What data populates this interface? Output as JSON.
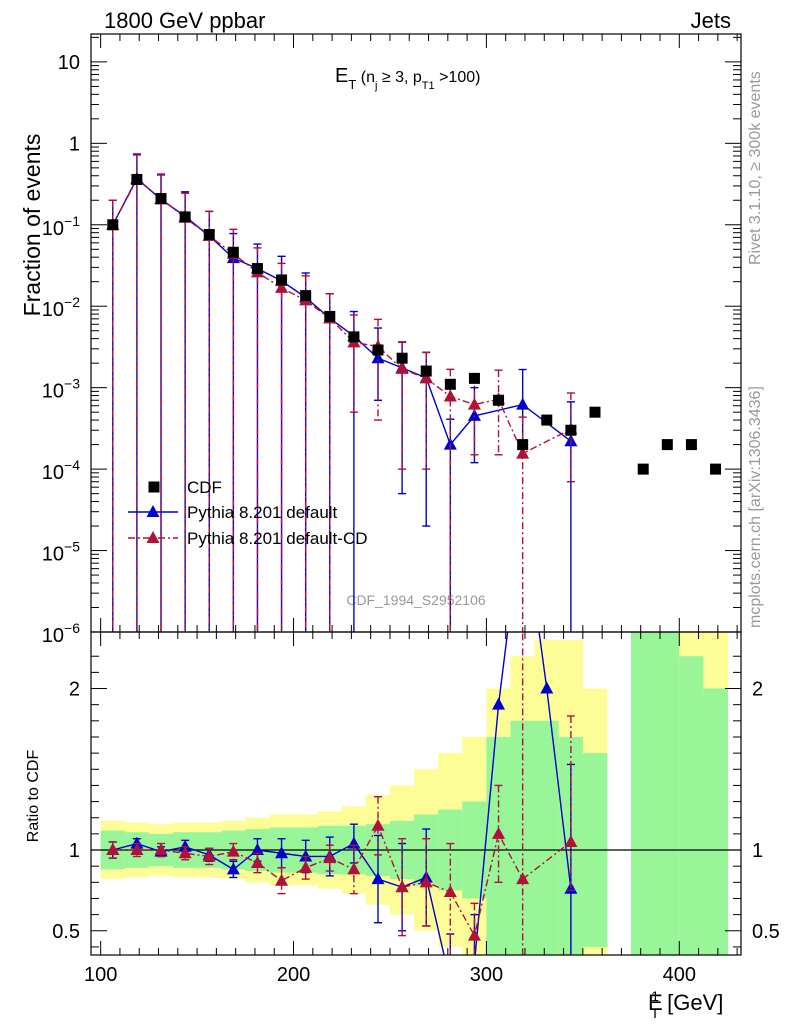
{
  "header": {
    "process": "1800 GeV ppbar",
    "category": "Jets"
  },
  "side_labels": {
    "version": "Rivet 3.1.10, ≥ 300k events",
    "source": "mcplots.cern.ch [arXiv:1306.3436]"
  },
  "plot_title": {
    "main": "E",
    "main_sub": "T",
    "paren_open": " (n",
    "nj_sub": "j",
    "mid": " ≥ 3, p",
    "pt_sub": "T1",
    "close": " >100)"
  },
  "analysis_id": "CDF_1994_S2952106",
  "xlabel": {
    "main": "E",
    "sup": "1",
    "sub": "T",
    "unit": " [GeV]"
  },
  "colors": {
    "data": "#000000",
    "default": "#0000cc",
    "default_cd": "#b0103a",
    "band_inner": "#98f598",
    "band_outer": "#fdfd98"
  },
  "chart_data": [
    {
      "type": "scatter",
      "panel": "main",
      "xlim": [
        95,
        432
      ],
      "ylim": [
        1e-06,
        22
      ],
      "yscale": "log",
      "ylabel": "Fraction of events",
      "x_ticks": [
        100,
        200,
        300,
        400
      ],
      "y_ticks": [
        {
          "v": 1e-06,
          "base": "10",
          "exp": "−6"
        },
        {
          "v": 1e-05,
          "base": "10",
          "exp": "−5"
        },
        {
          "v": 0.0001,
          "base": "10",
          "exp": "−4"
        },
        {
          "v": 0.001,
          "base": "10",
          "exp": "−3"
        },
        {
          "v": 0.01,
          "base": "10",
          "exp": "−2"
        },
        {
          "v": 0.1,
          "base": "10",
          "exp": "−1"
        },
        {
          "v": 1,
          "base": "1",
          "exp": ""
        },
        {
          "v": 10,
          "base": "10",
          "exp": ""
        }
      ],
      "legend_position": "lower-left",
      "series": [
        {
          "name": "CDF",
          "style": "square",
          "x": [
            106.3,
            118.8,
            131.3,
            143.8,
            156.3,
            168.8,
            181.3,
            193.8,
            206.3,
            218.8,
            231.3,
            243.8,
            256.3,
            268.8,
            281.3,
            293.8,
            306.3,
            318.8,
            331.3,
            343.8,
            356.3,
            381.3,
            393.8,
            406.3,
            418.8
          ],
          "y": [
            0.1,
            0.36,
            0.21,
            0.125,
            0.076,
            0.046,
            0.029,
            0.021,
            0.0135,
            0.0075,
            0.0042,
            0.0029,
            0.0023,
            0.0016,
            0.0011,
            0.0013,
            0.0007,
            0.0002,
            0.0004,
            0.0003,
            0.0005,
            0.0001,
            0.0002,
            0.0002,
            0.0001
          ]
        },
        {
          "name": "Pythia 8.201 default",
          "style": "blue-line",
          "x": [
            106.3,
            118.8,
            131.3,
            143.8,
            156.3,
            168.8,
            181.3,
            193.8,
            206.3,
            218.8,
            231.3,
            243.8,
            256.3,
            268.8,
            281.3,
            293.8,
            306.3,
            318.8,
            331.3,
            343.8
          ],
          "y": [
            0.1,
            0.37,
            0.205,
            0.127,
            0.073,
            0.039,
            0.029,
            0.0205,
            0.0128,
            0.0071,
            0.0043,
            0.0023,
            0.00175,
            0.00132,
            0.0002,
            0.00045,
            null,
            0.00062,
            null,
            0.00022
          ],
          "err_lo": [
            0.1,
            0.37,
            0.205,
            0.127,
            0.073,
            0.039,
            0.029,
            0.0205,
            0.0128,
            0.0071,
            0.0043,
            0.0016,
            0.0017,
            0.0013,
            1.0,
            0.00033,
            null,
            0.00044,
            null,
            1.0
          ],
          "err_hi": [
            0.1,
            0.37,
            0.205,
            0.127,
            0.073,
            0.039,
            0.029,
            0.0205,
            0.0128,
            0.0071,
            0.0043,
            0.0031,
            0.0019,
            0.0014,
            0.00021,
            0.00055,
            null,
            0.00105,
            null,
            0.00045
          ]
        },
        {
          "name": "Pythia 8.201 default-CD",
          "style": "red-dashdot",
          "x": [
            106.3,
            118.8,
            131.3,
            143.8,
            156.3,
            168.8,
            181.3,
            193.8,
            206.3,
            218.8,
            231.3,
            243.8,
            256.3,
            268.8,
            281.3,
            293.8,
            306.3,
            318.8,
            343.8
          ],
          "y": [
            0.1,
            0.36,
            0.21,
            0.122,
            0.073,
            0.044,
            0.026,
            0.0168,
            0.0118,
            0.0071,
            0.0036,
            0.0032,
            0.0017,
            0.0013,
            0.00078,
            0.00062,
            0.00072,
            0.000155,
            0.00031
          ],
          "err_lo": [
            0.1,
            0.36,
            0.21,
            0.122,
            0.073,
            0.044,
            0.026,
            0.0168,
            0.0118,
            0.0071,
            0.0031,
            0.0028,
            0.0016,
            0.0012,
            1.0,
            0.00047,
            0.00057,
            1.0,
            0.00024
          ],
          "err_hi": [
            0.1,
            0.36,
            0.21,
            0.122,
            0.073,
            0.044,
            0.026,
            0.0168,
            0.0118,
            0.0071,
            0.0042,
            0.0037,
            0.0019,
            0.0014,
            0.0009,
            0.00079,
            0.00092,
            0.00028,
            0.00055
          ]
        }
      ]
    },
    {
      "type": "line",
      "panel": "ratio",
      "ylabel": "Ratio to CDF",
      "xlim": [
        95,
        432
      ],
      "ylim": [
        0.35,
        2.35
      ],
      "y_ticks": [
        0.5,
        1,
        2
      ],
      "y_tick_labels": [
        "0.5",
        "1",
        "2"
      ],
      "x_ticks": [
        100,
        200,
        300,
        400
      ],
      "x_tick_labels": [
        "100",
        "200",
        "300",
        "400"
      ],
      "bands": {
        "edges": [
          100,
          112.5,
          125,
          137.5,
          150,
          162.5,
          175,
          187.5,
          200,
          212.5,
          225,
          237.5,
          250,
          262.5,
          275,
          287.5,
          300,
          312.5,
          325,
          337.5,
          350,
          362.5,
          375,
          387.5,
          400,
          412.5,
          425
        ],
        "inner_lo": [
          0.88,
          0.89,
          0.9,
          0.89,
          0.89,
          0.88,
          0.87,
          0.86,
          0.86,
          0.85,
          0.85,
          0.84,
          0.82,
          0.78,
          0.75,
          0.7,
          0.3,
          0.2,
          0.2,
          0.3,
          0.4,
          null,
          0.2,
          0.2,
          0.2,
          0.2
        ],
        "inner_hi": [
          1.12,
          1.11,
          1.1,
          1.11,
          1.11,
          1.12,
          1.13,
          1.14,
          1.14,
          1.15,
          1.15,
          1.16,
          1.18,
          1.22,
          1.25,
          1.3,
          1.7,
          1.8,
          1.8,
          1.7,
          1.6,
          null,
          3.0,
          2.5,
          2.2,
          2.0
        ],
        "outer_lo": [
          0.82,
          0.83,
          0.84,
          0.83,
          0.83,
          0.82,
          0.8,
          0.78,
          0.78,
          0.76,
          0.73,
          0.66,
          0.6,
          0.5,
          0.4,
          0.3,
          0.1,
          0.05,
          0.05,
          0.1,
          0.2,
          null,
          0.1,
          0.1,
          0.1,
          0.1
        ],
        "outer_hi": [
          1.18,
          1.17,
          1.16,
          1.17,
          1.17,
          1.18,
          1.2,
          1.22,
          1.22,
          1.24,
          1.27,
          1.34,
          1.4,
          1.5,
          1.6,
          1.7,
          2.0,
          2.2,
          2.3,
          2.3,
          2.0,
          null,
          3.5,
          3.0,
          2.6,
          2.5
        ]
      },
      "reference_line": 1,
      "series": [
        {
          "name": "Pythia 8.201 default",
          "x": [
            106.3,
            118.8,
            131.3,
            143.8,
            156.3,
            168.8,
            181.3,
            193.8,
            206.3,
            218.8,
            231.3,
            243.8,
            256.3,
            268.8,
            281.3,
            293.8,
            306.3,
            318.8,
            331.3,
            343.8
          ],
          "y": [
            1.0,
            1.04,
            0.99,
            1.02,
            0.97,
            0.88,
            1.0,
            0.98,
            0.96,
            0.96,
            1.04,
            0.82,
            0.77,
            0.83,
            0.18,
            0.3,
            1.9,
            3.1,
            2.0,
            0.76
          ],
          "err_lo": [
            0.05,
            0.03,
            0.03,
            0.04,
            0.04,
            0.05,
            0.07,
            0.09,
            0.1,
            0.12,
            0.12,
            0.27,
            0.27,
            0.3,
            0.5,
            0.5,
            null,
            null,
            null,
            0.6
          ],
          "err_hi": [
            0.05,
            0.03,
            0.03,
            0.04,
            0.04,
            0.05,
            0.07,
            0.09,
            0.1,
            0.12,
            0.12,
            0.27,
            0.27,
            0.3,
            0.3,
            0.3,
            null,
            null,
            null,
            0.77
          ]
        },
        {
          "name": "Pythia 8.201 default-CD",
          "x": [
            106.3,
            118.8,
            131.3,
            143.8,
            156.3,
            168.8,
            181.3,
            193.8,
            206.3,
            218.8,
            231.3,
            243.8,
            256.3,
            268.8,
            281.3,
            293.8,
            306.3,
            318.8,
            343.8
          ],
          "y": [
            1.0,
            1.0,
            1.0,
            0.98,
            0.96,
            0.99,
            0.92,
            0.81,
            0.89,
            0.95,
            0.88,
            1.15,
            0.77,
            0.8,
            0.74,
            0.47,
            1.1,
            0.82,
            1.05
          ],
          "err_lo": [
            0.05,
            0.04,
            0.04,
            0.04,
            0.05,
            0.05,
            0.06,
            0.08,
            0.07,
            0.08,
            0.15,
            0.18,
            0.3,
            0.27,
            0.4,
            0.2,
            0.3,
            0.5,
            0.3
          ],
          "err_hi": [
            0.05,
            0.04,
            0.04,
            0.04,
            0.05,
            0.05,
            0.06,
            0.08,
            0.07,
            0.08,
            0.15,
            0.18,
            0.3,
            0.27,
            0.3,
            0.2,
            0.3,
            1.8,
            0.78
          ]
        }
      ]
    }
  ]
}
